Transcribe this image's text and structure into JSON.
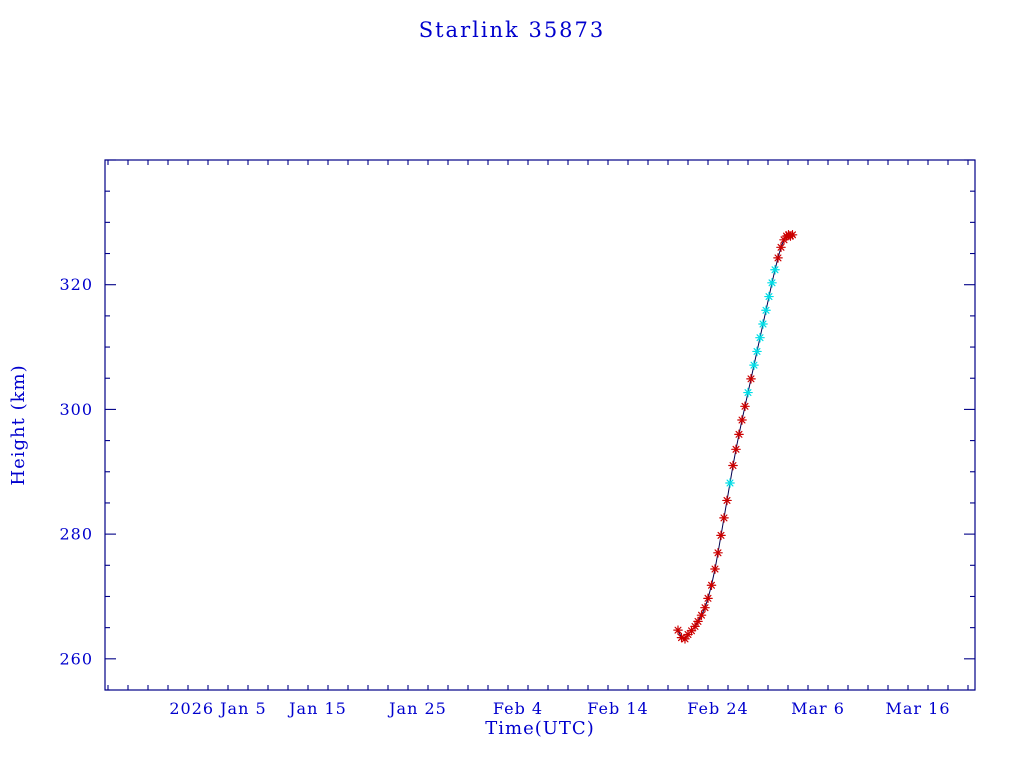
{
  "page": {
    "background": "#ffffff"
  },
  "colors": {
    "text": "#0000cd",
    "frame": "#000087",
    "line": "#000050",
    "marker_red": "#cc0000",
    "marker_cyan": "#00dde6"
  },
  "chart_data": {
    "type": "line",
    "title": "Starlink 35873",
    "xlabel": "Time(UTC)",
    "ylabel": "Height (km)",
    "x_axis_unit": "day of year 2026",
    "xlim": [
      -6.3,
      80.7
    ],
    "ylim": [
      255,
      340
    ],
    "x_major_ticks": [
      {
        "day": 5,
        "label": "2026 Jan 5"
      },
      {
        "day": 15,
        "label": "Jan 15"
      },
      {
        "day": 25,
        "label": "Jan 25"
      },
      {
        "day": 35,
        "label": "Feb 4"
      },
      {
        "day": 45,
        "label": "Feb 14"
      },
      {
        "day": 55,
        "label": "Feb 24"
      },
      {
        "day": 65,
        "label": "Mar 6"
      },
      {
        "day": 75,
        "label": "Mar 16"
      }
    ],
    "x_minor_step": 2,
    "y_major_ticks": [
      260,
      280,
      300,
      320
    ],
    "y_minor_step": 5,
    "grid": false,
    "legend": "none",
    "marker": "asterisk",
    "points": [
      {
        "d": 51.0,
        "h": 264.6,
        "c": "red"
      },
      {
        "d": 51.35,
        "h": 263.4,
        "c": "red"
      },
      {
        "d": 51.7,
        "h": 263.2,
        "c": "red"
      },
      {
        "d": 52.0,
        "h": 263.9,
        "c": "red"
      },
      {
        "d": 52.35,
        "h": 264.5,
        "c": "red"
      },
      {
        "d": 52.7,
        "h": 265.2,
        "c": "red"
      },
      {
        "d": 53.0,
        "h": 266.0,
        "c": "red"
      },
      {
        "d": 53.35,
        "h": 267.0,
        "c": "red"
      },
      {
        "d": 53.7,
        "h": 268.2,
        "c": "red"
      },
      {
        "d": 54.0,
        "h": 269.7,
        "c": "red"
      },
      {
        "d": 54.35,
        "h": 271.8,
        "c": "red"
      },
      {
        "d": 54.7,
        "h": 274.4,
        "c": "red"
      },
      {
        "d": 55.0,
        "h": 277.0,
        "c": "red"
      },
      {
        "d": 55.3,
        "h": 279.8,
        "c": "red"
      },
      {
        "d": 55.6,
        "h": 282.6,
        "c": "red"
      },
      {
        "d": 55.9,
        "h": 285.4,
        "c": "red"
      },
      {
        "d": 56.2,
        "h": 288.2,
        "c": "cyan"
      },
      {
        "d": 56.5,
        "h": 291.0,
        "c": "red"
      },
      {
        "d": 56.8,
        "h": 293.6,
        "c": "red"
      },
      {
        "d": 57.1,
        "h": 296.0,
        "c": "red"
      },
      {
        "d": 57.4,
        "h": 298.3,
        "c": "red"
      },
      {
        "d": 57.7,
        "h": 300.5,
        "c": "red"
      },
      {
        "d": 58.0,
        "h": 302.7,
        "c": "cyan"
      },
      {
        "d": 58.3,
        "h": 304.9,
        "c": "red"
      },
      {
        "d": 58.6,
        "h": 307.1,
        "c": "cyan"
      },
      {
        "d": 58.9,
        "h": 309.3,
        "c": "cyan"
      },
      {
        "d": 59.2,
        "h": 311.5,
        "c": "cyan"
      },
      {
        "d": 59.5,
        "h": 313.7,
        "c": "cyan"
      },
      {
        "d": 59.8,
        "h": 315.9,
        "c": "cyan"
      },
      {
        "d": 60.1,
        "h": 318.1,
        "c": "cyan"
      },
      {
        "d": 60.4,
        "h": 320.3,
        "c": "cyan"
      },
      {
        "d": 60.7,
        "h": 322.4,
        "c": "cyan"
      },
      {
        "d": 61.0,
        "h": 324.3,
        "c": "red"
      },
      {
        "d": 61.3,
        "h": 326.0,
        "c": "red"
      },
      {
        "d": 61.6,
        "h": 327.2,
        "c": "red"
      },
      {
        "d": 61.85,
        "h": 327.8,
        "c": "red"
      },
      {
        "d": 62.05,
        "h": 328.0,
        "c": "red"
      },
      {
        "d": 62.25,
        "h": 327.8,
        "c": "red"
      },
      {
        "d": 62.45,
        "h": 328.0,
        "c": "red"
      }
    ]
  }
}
